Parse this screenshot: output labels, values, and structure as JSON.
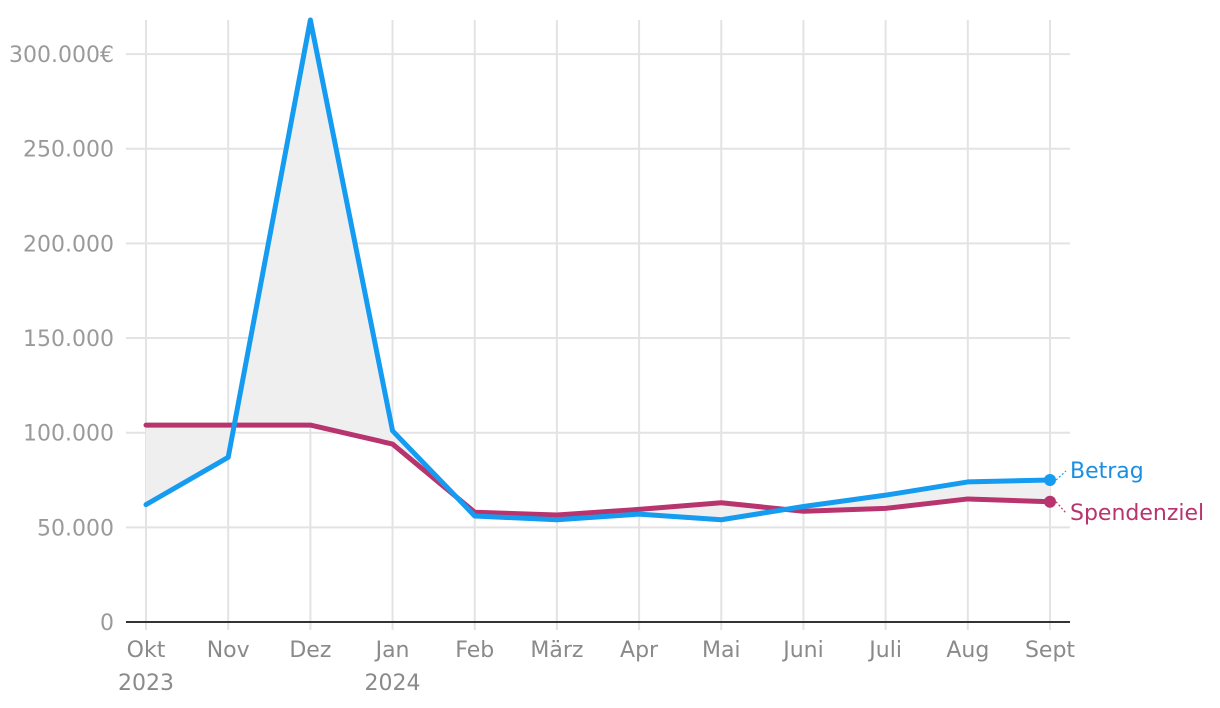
{
  "chart_data": {
    "type": "line",
    "categories": [
      "Okt",
      "Nov",
      "Dez",
      "Jan",
      "Feb",
      "März",
      "Apr",
      "Mai",
      "Juni",
      "Juli",
      "Aug",
      "Sept"
    ],
    "year_labels": [
      "2023",
      "",
      "",
      "2024",
      "",
      "",
      "",
      "",
      "",
      "",
      "",
      ""
    ],
    "y_ticks": [
      "0",
      "50.000",
      "100.000",
      "150.000",
      "200.000",
      "250.000",
      "300.000€"
    ],
    "y_tick_values": [
      0,
      50000,
      100000,
      150000,
      200000,
      250000,
      300000
    ],
    "ylim": [
      0,
      318000
    ],
    "grid": true,
    "fill_between": true,
    "series": [
      {
        "name": "Betrag",
        "color": "#159cf0",
        "values": [
          62000,
          87000,
          318000,
          101000,
          56000,
          54000,
          57000,
          54000,
          61000,
          67000,
          74000,
          75000
        ]
      },
      {
        "name": "Spendenziel",
        "color": "#b8346e",
        "values": [
          104000,
          104000,
          104000,
          94000,
          58000,
          56500,
          59500,
          63000,
          58500,
          60000,
          65000,
          63500
        ]
      }
    ]
  }
}
